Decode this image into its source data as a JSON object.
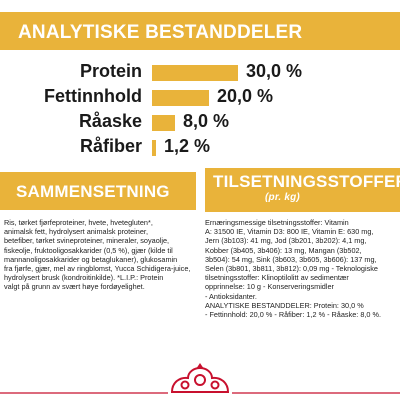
{
  "header": {
    "title": "ANALYTISKE BESTANDDELER"
  },
  "analysis": {
    "rows": [
      {
        "label": "Protein",
        "value": "30,0 %",
        "level": 30.0
      },
      {
        "label": "Fettinnhold",
        "value": "20,0 %",
        "level": 20.0
      },
      {
        "label": "Råaske",
        "value": "8,0 %",
        "level": 8.0
      },
      {
        "label": "Råfiber",
        "value": "1,2 %",
        "level": 1.2
      }
    ]
  },
  "composition": {
    "title": "SAMMENSETNING",
    "text": "Ris, tørket fjørfeproteiner, hvete, hvetegluten*,\nanimalsk fett, hydrolysert animalsk proteiner,\nbetefiber, tørket svineproteiner, mineraler, soyaolje,\nfiskeolje, fruktooligosakkarider (0,5 %), gjær (kilde til\nmannanoligosakkarider og betaglukaner), glukosamin\nfra fjørfe, gjær, mel av ringblomst, Yucca Schidigera-juice,\nhydrolysert brusk (kondroitinkilde). *L.I.P.: Protein\nvalgt på grunn av svært høye fordøyelighet."
  },
  "additives": {
    "title": "TILSETNINGSSTOFFER",
    "subtitle": "(pr. kg)",
    "text": "Ernæringsmessige tilsetningsstoffer: Vitamin\nA: 31500 IE, Vitamin D3: 800 IE, Vitamin E: 630 mg,\nJern (3b103): 41 mg, Jod (3b201, 3b202): 4,1 mg,\nKobber (3b405, 3b406): 13 mg, Mangan (3b502,\n3b504): 54 mg, Sink (3b603, 3b605, 3b606): 137 mg,\nSelen (3b801, 3b811, 3b812): 0,09 mg - Teknologiske\ntilsetningsstoffer: Klinoptilolitt av sedimentær\nopprinnelse: 10 g - Konserveringsmidler\n- Antioksidanter.\nANALYTISKE BESTANDDELER: Protein: 30,0 %\n- Fettinnhold: 20,0 % - Råfiber: 1,2 % - Råaske: 8,0 %."
  },
  "colors": {
    "accent": "#e9b33a",
    "brand_red": "#c8102e"
  },
  "logo": {
    "icon": "crown-logo-icon"
  }
}
